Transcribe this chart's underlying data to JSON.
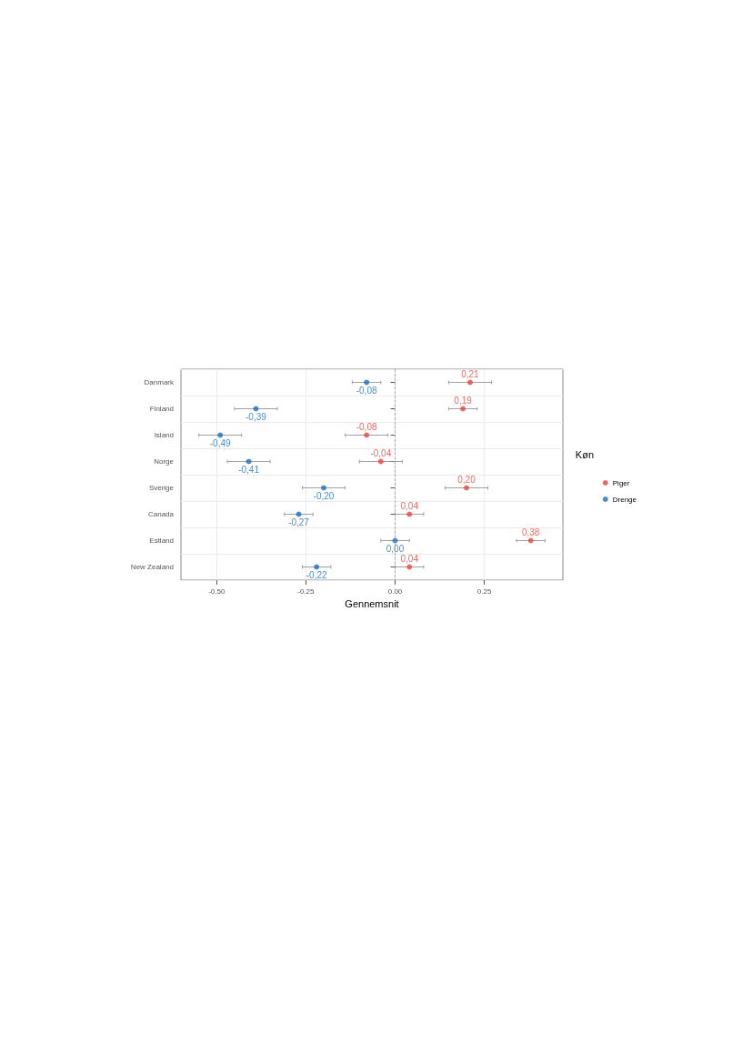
{
  "chart_data": {
    "type": "scatter",
    "orientation": "horizontal",
    "xlabel": "Gennemsnit",
    "legend_title": "Køn",
    "categories": [
      "Danmark",
      "Finland",
      "Island",
      "Norge",
      "Sverige",
      "Canada",
      "Estland",
      "New Zealand"
    ],
    "series": [
      {
        "name": "Piger",
        "color": "#e8453c",
        "values": [
          0.21,
          0.19,
          -0.08,
          -0.04,
          0.2,
          0.04,
          0.38,
          0.04
        ],
        "errors": [
          0.06,
          0.04,
          0.06,
          0.06,
          0.06,
          0.04,
          0.04,
          0.04
        ],
        "value_labels": [
          "0,21",
          "0,19",
          "-0,08",
          "-0,04",
          "0,20",
          "0,04",
          "0,38",
          "0,04"
        ]
      },
      {
        "name": "Drenge",
        "color": "#1a6fc0",
        "values": [
          -0.08,
          -0.39,
          -0.49,
          -0.41,
          -0.2,
          -0.27,
          0.0,
          -0.22
        ],
        "errors": [
          0.04,
          0.06,
          0.06,
          0.06,
          0.06,
          0.04,
          0.04,
          0.04
        ],
        "value_labels": [
          "-0,08",
          "-0,39",
          "-0,49",
          "-0,41",
          "-0,20",
          "-0,27",
          "0,00",
          "-0,22"
        ]
      }
    ],
    "xlim": [
      -0.6,
      0.47
    ],
    "xticks": [
      {
        "value": -0.5,
        "label": "-0.50"
      },
      {
        "value": -0.25,
        "label": "-0.25"
      },
      {
        "value": 0,
        "label": "0.00"
      },
      {
        "value": 0.25,
        "label": "0.25"
      }
    ],
    "ref_lines": [
      {
        "axis": "x",
        "value": 0,
        "label": null,
        "color": "#999999",
        "line_style": "dashed"
      }
    ],
    "grid": true,
    "legend": "right",
    "marker": "circle"
  }
}
